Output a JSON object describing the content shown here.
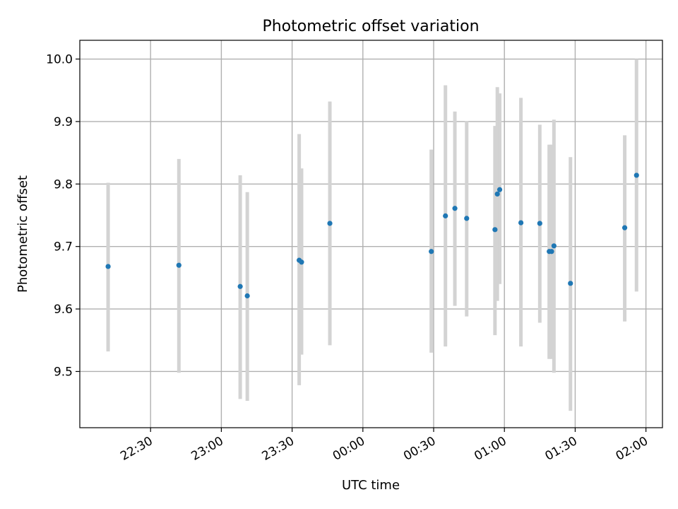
{
  "chart_data": {
    "type": "scatter",
    "title": "Photometric offset variation",
    "xlabel": "UTC time",
    "ylabel": "Photometric offset",
    "grid": true,
    "ylim": [
      9.41,
      10.03
    ],
    "xlim": [
      "22:00",
      "02:07"
    ],
    "yticks": [
      9.5,
      9.6,
      9.7,
      9.8,
      9.9,
      10.0
    ],
    "ytick_labels": [
      "9.5",
      "9.6",
      "9.7",
      "9.8",
      "9.9",
      "10.0"
    ],
    "xticks": [
      "22:30",
      "23:00",
      "23:30",
      "00:00",
      "00:30",
      "01:00",
      "01:30",
      "02:00"
    ],
    "xtick_labels": [
      "22:30",
      "23:00",
      "23:30",
      "00:00",
      "00:30",
      "01:00",
      "01:30",
      "02:00"
    ],
    "colors": {
      "marker": "#1f77b4",
      "errorbar": "#d3d3d3",
      "grid": "#b0b0b0"
    },
    "points": [
      {
        "x": "22:12",
        "y": 9.668,
        "ylow": 9.532,
        "yhigh": 9.802
      },
      {
        "x": "22:42",
        "y": 9.67,
        "ylow": 9.498,
        "yhigh": 9.84
      },
      {
        "x": "23:08",
        "y": 9.636,
        "ylow": 9.456,
        "yhigh": 9.814
      },
      {
        "x": "23:11",
        "y": 9.621,
        "ylow": 9.453,
        "yhigh": 9.787
      },
      {
        "x": "23:33",
        "y": 9.678,
        "ylow": 9.478,
        "yhigh": 9.88
      },
      {
        "x": "23:34",
        "y": 9.675,
        "ylow": 9.527,
        "yhigh": 9.825
      },
      {
        "x": "23:46",
        "y": 9.737,
        "ylow": 9.542,
        "yhigh": 9.932
      },
      {
        "x": "00:29",
        "y": 9.692,
        "ylow": 9.53,
        "yhigh": 9.855
      },
      {
        "x": "00:35",
        "y": 9.749,
        "ylow": 9.54,
        "yhigh": 9.958
      },
      {
        "x": "00:39",
        "y": 9.761,
        "ylow": 9.605,
        "yhigh": 9.916
      },
      {
        "x": "00:44",
        "y": 9.745,
        "ylow": 9.588,
        "yhigh": 9.901
      },
      {
        "x": "00:56",
        "y": 9.727,
        "ylow": 9.558,
        "yhigh": 9.893
      },
      {
        "x": "00:57",
        "y": 9.784,
        "ylow": 9.613,
        "yhigh": 9.955
      },
      {
        "x": "00:58",
        "y": 9.791,
        "ylow": 9.64,
        "yhigh": 9.945
      },
      {
        "x": "01:07",
        "y": 9.738,
        "ylow": 9.54,
        "yhigh": 9.938
      },
      {
        "x": "01:15",
        "y": 9.737,
        "ylow": 9.578,
        "yhigh": 9.895
      },
      {
        "x": "01:19",
        "y": 9.692,
        "ylow": 9.52,
        "yhigh": 9.863
      },
      {
        "x": "01:20",
        "y": 9.692,
        "ylow": 9.52,
        "yhigh": 9.863
      },
      {
        "x": "01:21",
        "y": 9.701,
        "ylow": 9.498,
        "yhigh": 9.903
      },
      {
        "x": "01:28",
        "y": 9.641,
        "ylow": 9.437,
        "yhigh": 9.843
      },
      {
        "x": "01:51",
        "y": 9.73,
        "ylow": 9.58,
        "yhigh": 9.878
      },
      {
        "x": "01:56",
        "y": 9.814,
        "ylow": 9.628,
        "yhigh": 10.0
      }
    ]
  }
}
